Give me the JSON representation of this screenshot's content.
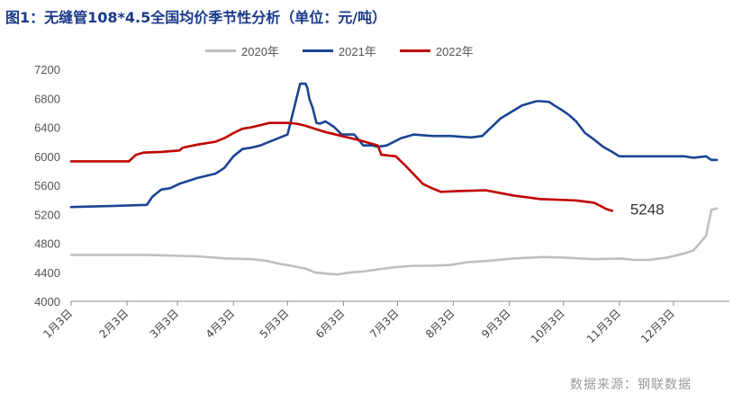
{
  "title": "图1：无缝管108*4.5全国均价季节性分析（单位：元/吨）",
  "source": "数据来源：钢联数据",
  "colors": {
    "s2020": "#bfbfbf",
    "s2021": "#1a4494",
    "s2022": "#c00000"
  },
  "chart_data": {
    "type": "line",
    "title": "图1：无缝管108*4.5全国均价季节性分析（单位：元/吨）",
    "ylim": [
      4000,
      7200
    ],
    "yticks": [
      4000,
      4400,
      4800,
      5200,
      5600,
      6000,
      6400,
      6800,
      7200
    ],
    "x_tick_labels": [
      "1月3日",
      "2月3日",
      "3月3日",
      "4月3日",
      "5月3日",
      "6月3日",
      "7月3日",
      "8月3日",
      "9月3日",
      "10月3日",
      "11月3日",
      "12月3日"
    ],
    "x_tick_days": [
      0,
      31,
      59,
      90,
      120,
      151,
      181,
      212,
      243,
      273,
      304,
      334
    ],
    "legend_position": "top",
    "grid": false,
    "series": [
      {
        "name": "2020年",
        "color_key": "s2020",
        "x": [
          0,
          20,
          40,
          55,
          70,
          86,
          100,
          108,
          115,
          122,
          130,
          135,
          142,
          148,
          155,
          162,
          170,
          180,
          190,
          200,
          210,
          220,
          232,
          245,
          262,
          275,
          290,
          305,
          312,
          320,
          330,
          340,
          345,
          352,
          355,
          358
        ],
        "y": [
          4640,
          4640,
          4640,
          4630,
          4620,
          4590,
          4580,
          4560,
          4520,
          4490,
          4450,
          4400,
          4380,
          4370,
          4400,
          4410,
          4440,
          4470,
          4490,
          4490,
          4500,
          4540,
          4560,
          4590,
          4610,
          4600,
          4580,
          4590,
          4570,
          4570,
          4600,
          4660,
          4700,
          4900,
          5260,
          5280
        ]
      },
      {
        "name": "2021年",
        "color_key": "s2021",
        "x": [
          0,
          30,
          42,
          45,
          50,
          55,
          60,
          70,
          80,
          85,
          90,
          95,
          100,
          105,
          110,
          115,
          120,
          124,
          126,
          127,
          128,
          129,
          130,
          131,
          132,
          134,
          136,
          138,
          141,
          143,
          146,
          150,
          157,
          162,
          167,
          170,
          175,
          183,
          190,
          200,
          210,
          222,
          228,
          238,
          250,
          258,
          260,
          265,
          268,
          272,
          276,
          280,
          285,
          290,
          295,
          300,
          304,
          315,
          330,
          340,
          345,
          352,
          355,
          358
        ],
        "y": [
          5300,
          5320,
          5330,
          5440,
          5540,
          5560,
          5620,
          5700,
          5760,
          5840,
          6000,
          6100,
          6120,
          6150,
          6200,
          6250,
          6300,
          6700,
          6900,
          7000,
          7000,
          7000,
          7000,
          6940,
          6800,
          6660,
          6460,
          6450,
          6480,
          6450,
          6400,
          6300,
          6300,
          6150,
          6150,
          6130,
          6150,
          6250,
          6300,
          6280,
          6280,
          6260,
          6280,
          6520,
          6700,
          6760,
          6760,
          6750,
          6700,
          6640,
          6570,
          6480,
          6320,
          6230,
          6130,
          6060,
          6000,
          6000,
          6000,
          6000,
          5980,
          6000,
          5950,
          5950
        ]
      },
      {
        "name": "2022年",
        "color_key": "s2022",
        "x": [
          0,
          32,
          36,
          40,
          50,
          60,
          62,
          70,
          80,
          85,
          90,
          95,
          100,
          105,
          110,
          115,
          120,
          125,
          130,
          135,
          140,
          150,
          160,
          170,
          172,
          180,
          185,
          190,
          195,
          200,
          205,
          215,
          230,
          245,
          260,
          280,
          290,
          297,
          300
        ],
        "y": [
          5930,
          5930,
          6020,
          6050,
          6060,
          6080,
          6120,
          6160,
          6200,
          6250,
          6320,
          6380,
          6400,
          6430,
          6460,
          6460,
          6460,
          6450,
          6420,
          6380,
          6340,
          6280,
          6220,
          6150,
          6020,
          6000,
          5880,
          5750,
          5620,
          5560,
          5510,
          5520,
          5530,
          5460,
          5410,
          5390,
          5360,
          5270,
          5248
        ]
      }
    ],
    "annotations": [
      {
        "text": "5248",
        "x": 300,
        "y": 5248
      }
    ]
  }
}
